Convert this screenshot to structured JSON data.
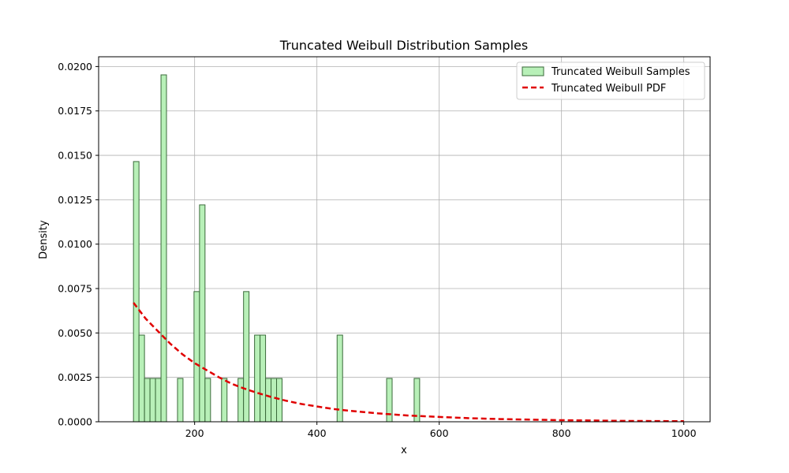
{
  "chart_data": {
    "type": "bar",
    "title": "Truncated Weibull Distribution Samples",
    "xlabel": "x",
    "ylabel": "Density",
    "xlim": [
      43,
      1043
    ],
    "ylim": [
      0,
      0.02055
    ],
    "x_ticks": [
      200,
      400,
      600,
      800,
      1000
    ],
    "x_tick_labels": [
      "200",
      "400",
      "600",
      "800",
      "1000"
    ],
    "y_ticks": [
      0,
      0.0025,
      0.005,
      0.0075,
      0.01,
      0.0125,
      0.015,
      0.0175,
      0.02
    ],
    "y_tick_labels": [
      "0.0000",
      "0.0025",
      "0.0050",
      "0.0075",
      "0.0100",
      "0.0125",
      "0.0150",
      "0.0175",
      "0.0200"
    ],
    "grid": true,
    "legend_position": "top-right",
    "histogram": {
      "name": "Truncated Weibull Samples",
      "face_color": "#b8f0b8",
      "edge_color": "#3a6a3a",
      "bin_width": 9.0,
      "bars": [
        {
          "x": 100,
          "height": 0.01465
        },
        {
          "x": 109,
          "height": 0.00488
        },
        {
          "x": 118,
          "height": 0.00244
        },
        {
          "x": 127,
          "height": 0.00244
        },
        {
          "x": 136,
          "height": 0.00244
        },
        {
          "x": 145,
          "height": 0.01953
        },
        {
          "x": 172,
          "height": 0.00244
        },
        {
          "x": 199,
          "height": 0.00733
        },
        {
          "x": 208,
          "height": 0.01221
        },
        {
          "x": 217,
          "height": 0.00244
        },
        {
          "x": 244,
          "height": 0.00244
        },
        {
          "x": 271,
          "height": 0.00244
        },
        {
          "x": 280,
          "height": 0.00733
        },
        {
          "x": 298,
          "height": 0.00488
        },
        {
          "x": 307,
          "height": 0.00488
        },
        {
          "x": 316,
          "height": 0.00244
        },
        {
          "x": 325,
          "height": 0.00244
        },
        {
          "x": 334,
          "height": 0.00244
        },
        {
          "x": 433,
          "height": 0.00488
        },
        {
          "x": 514,
          "height": 0.00244
        },
        {
          "x": 559,
          "height": 0.00244
        }
      ]
    },
    "pdf": {
      "name": "Truncated Weibull PDF",
      "color": "#e00000",
      "line_style": "dashed",
      "x": [
        100,
        120,
        140,
        160,
        180,
        200,
        220,
        240,
        260,
        280,
        300,
        325,
        350,
        375,
        400,
        425,
        450,
        500,
        550,
        600,
        650,
        700,
        750,
        800,
        850,
        900,
        950,
        1000
      ],
      "y": [
        0.0067,
        0.0058,
        0.0051,
        0.0044,
        0.0038,
        0.0033,
        0.0029,
        0.0025,
        0.00215,
        0.00188,
        0.00165,
        0.0014,
        0.00118,
        0.001,
        0.00086,
        0.00073,
        0.00063,
        0.00047,
        0.00035,
        0.00027,
        0.0002,
        0.00015,
        0.00012,
        9e-05,
        7e-05,
        5e-05,
        4e-05,
        3e-05
      ]
    }
  }
}
